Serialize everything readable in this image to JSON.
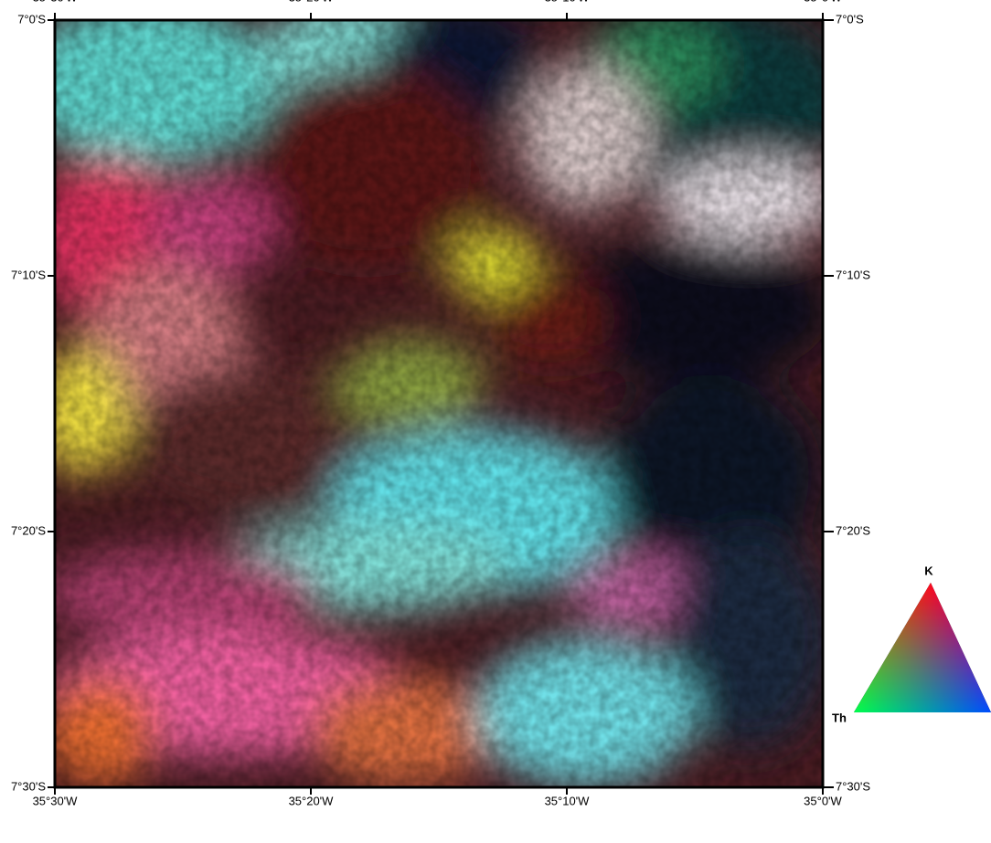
{
  "map": {
    "x_labels": [
      "35°30'W",
      "35°20'W",
      "35°10'W",
      "35°0'W"
    ],
    "y_labels": [
      "7°0'S",
      "7°10'S",
      "7°20'S",
      "7°30'S"
    ]
  },
  "legend": {
    "top": "K",
    "left": "Th"
  }
}
